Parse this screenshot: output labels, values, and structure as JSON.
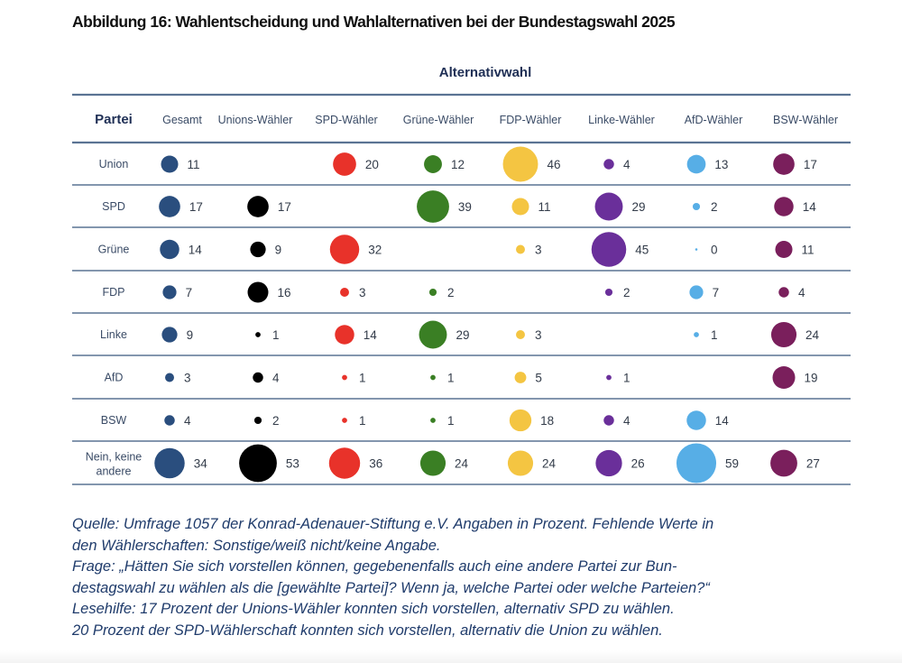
{
  "title": "Abbildung 16: Wahlentscheidung und Wahlalternativen bei der Bundestagswahl 2025",
  "chart_data": {
    "type": "bubble-table",
    "title": "Abbildung 16: Wahlentscheidung und Wahlalternativen bei der Bundestagswahl 2025",
    "supertitle": "Alternativwahl",
    "row_header": "Partei",
    "columns": [
      {
        "label": "Gesamt",
        "color": "#2a4e7e"
      },
      {
        "label": "Unions-Wähler",
        "color": "#000000"
      },
      {
        "label": "SPD-Wähler",
        "color": "#e8322a"
      },
      {
        "label": "Grüne-Wähler",
        "color": "#3a7f24"
      },
      {
        "label": "FDP-Wähler",
        "color": "#f4c542"
      },
      {
        "label": "Linke-Wähler",
        "color": "#6a2f9a"
      },
      {
        "label": "AfD-Wähler",
        "color": "#57aee6"
      },
      {
        "label": "BSW-Wähler",
        "color": "#7a1f5c"
      }
    ],
    "rows": [
      {
        "label": "Union",
        "values": [
          11,
          null,
          20,
          12,
          46,
          4,
          13,
          17
        ]
      },
      {
        "label": "SPD",
        "values": [
          17,
          17,
          null,
          39,
          11,
          29,
          2,
          14
        ]
      },
      {
        "label": "Grüne",
        "values": [
          14,
          9,
          32,
          null,
          3,
          45,
          0,
          11
        ]
      },
      {
        "label": "FDP",
        "values": [
          7,
          16,
          3,
          2,
          null,
          2,
          7,
          4
        ]
      },
      {
        "label": "Linke",
        "values": [
          9,
          1,
          14,
          29,
          3,
          null,
          1,
          24
        ]
      },
      {
        "label": "AfD",
        "values": [
          3,
          4,
          1,
          1,
          5,
          1,
          null,
          19
        ]
      },
      {
        "label": "BSW",
        "values": [
          4,
          2,
          1,
          1,
          18,
          4,
          14,
          null
        ]
      },
      {
        "label": "Nein, keine andere",
        "label_lines": [
          "Nein, keine",
          "andere"
        ],
        "values": [
          34,
          53,
          36,
          24,
          24,
          26,
          59,
          27
        ]
      }
    ],
    "unit": "Prozent",
    "line_color": "#5a7393"
  },
  "notes": [
    "Quelle: Umfrage 1057 der Konrad-Adenauer-Stiftung e.V. Angaben in Prozent. Fehlende Werte in",
    "den Wählerschaften: Sonstige/weiß nicht/keine Angabe.",
    "Frage: „Hätten Sie sich vorstellen können, gegebenenfalls auch eine andere Partei zur Bun-",
    "destagswahl zu wählen als die [gewählte Partei]? Wenn ja, welche Partei oder welche Parteien?“",
    "Lesehilfe: 17 Prozent der Unions-Wähler konnten sich vorstellen, alternativ SPD zu wählen.",
    "20 Prozent der SPD-Wählerschaft konnten sich vorstellen, alternativ die Union zu wählen."
  ]
}
